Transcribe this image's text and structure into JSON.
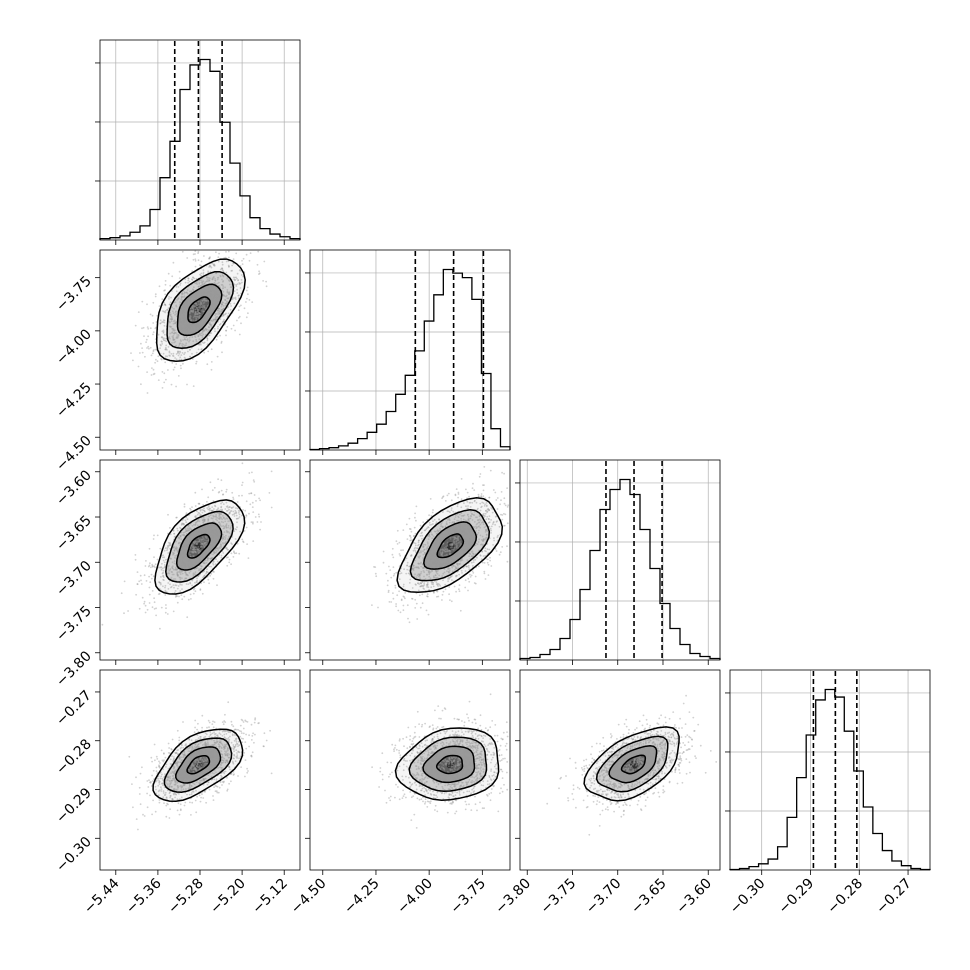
{
  "chart_data": {
    "type": "corner",
    "title": "",
    "grid": true,
    "colors": {
      "line": "#000000",
      "points": "#9a9a9a",
      "grid": "#b0b0b0",
      "contour_fill": "#4a4a4a"
    },
    "parameters": [
      {
        "name": "",
        "range": [
          -5.47,
          -5.09
        ],
        "ticks": [
          -5.44,
          -5.36,
          -5.28,
          -5.2,
          -5.12
        ],
        "tick_labels": [
          "−5.44",
          "−5.36",
          "−5.28",
          "−5.20",
          "−5.12"
        ],
        "mean": -5.283,
        "sd": 0.042,
        "quantiles": [
          -5.328,
          -5.283,
          -5.238
        ]
      },
      {
        "name": "",
        "range": [
          -4.56,
          -3.62
        ],
        "ticks": [
          -4.5,
          -4.25,
          -4.0,
          -3.75
        ],
        "tick_labels": [
          "−4.50",
          "−4.25",
          "−4.00",
          "−3.75"
        ],
        "mean": -3.885,
        "sd": 0.12,
        "quantiles": [
          -4.065,
          -3.885,
          -3.745
        ]
      },
      {
        "name": "",
        "range": [
          -3.808,
          -3.587
        ],
        "ticks": [
          -3.8,
          -3.75,
          -3.7,
          -3.65,
          -3.6
        ],
        "tick_labels": [
          "−3.80",
          "−3.75",
          "−3.70",
          "−3.65",
          "−3.60"
        ],
        "mean": -3.682,
        "sd": 0.026,
        "quantiles": [
          -3.713,
          -3.682,
          -3.651
        ]
      },
      {
        "name": "",
        "range": [
          -0.3065,
          -0.2655
        ],
        "ticks": [
          -0.3,
          -0.29,
          -0.28,
          -0.27
        ],
        "tick_labels": [
          "−0.30",
          "−0.29",
          "−0.28",
          "−0.27"
        ],
        "mean": -0.2849,
        "sd": 0.0037,
        "quantiles": [
          -0.2894,
          -0.2849,
          -0.2805
        ]
      }
    ],
    "diagonal_histograms": [
      {
        "param": 0,
        "bins": [
          -5.47,
          -5.09
        ],
        "counts": [
          1,
          2,
          4,
          8,
          15,
          33,
          68,
          108,
          165,
          192,
          198,
          185,
          129,
          84,
          48,
          24,
          12,
          6,
          3,
          1
        ]
      },
      {
        "param": 1,
        "bins": [
          -4.56,
          -3.62
        ],
        "counts": [
          0,
          1,
          2,
          4,
          7,
          12,
          19,
          28,
          42,
          61,
          82,
          109,
          142,
          171,
          199,
          195,
          190,
          166,
          84,
          23,
          3
        ]
      },
      {
        "param": 2,
        "bins": [
          -3.808,
          -3.587
        ],
        "counts": [
          1,
          2,
          5,
          10,
          21,
          40,
          70,
          109,
          150,
          170,
          180,
          165,
          130,
          91,
          56,
          31,
          15,
          6,
          3,
          1
        ]
      },
      {
        "param": 3,
        "bins": [
          -0.3065,
          -0.2655
        ],
        "counts": [
          0,
          1,
          3,
          6,
          11,
          24,
          55,
          97,
          142,
          179,
          190,
          182,
          146,
          104,
          66,
          38,
          20,
          9,
          4,
          1,
          0
        ]
      }
    ],
    "pairs": [
      {
        "x": 0,
        "y": 1,
        "center": [
          -5.283,
          -3.9
        ],
        "correlation": 0.55
      },
      {
        "x": 0,
        "y": 2,
        "center": [
          -5.283,
          -3.682
        ],
        "correlation": 0.6
      },
      {
        "x": 1,
        "y": 2,
        "center": [
          -3.9,
          -3.682
        ],
        "correlation": 0.55
      },
      {
        "x": 0,
        "y": 3,
        "center": [
          -5.283,
          -0.2849
        ],
        "correlation": 0.55
      },
      {
        "x": 1,
        "y": 3,
        "center": [
          -3.9,
          -0.2849
        ],
        "correlation": 0.15
      },
      {
        "x": 2,
        "y": 3,
        "center": [
          -3.682,
          -0.2849
        ],
        "correlation": 0.5
      }
    ],
    "contour_levels_sigma": [
      0.5,
      1.0,
      1.5,
      2.0
    ]
  }
}
